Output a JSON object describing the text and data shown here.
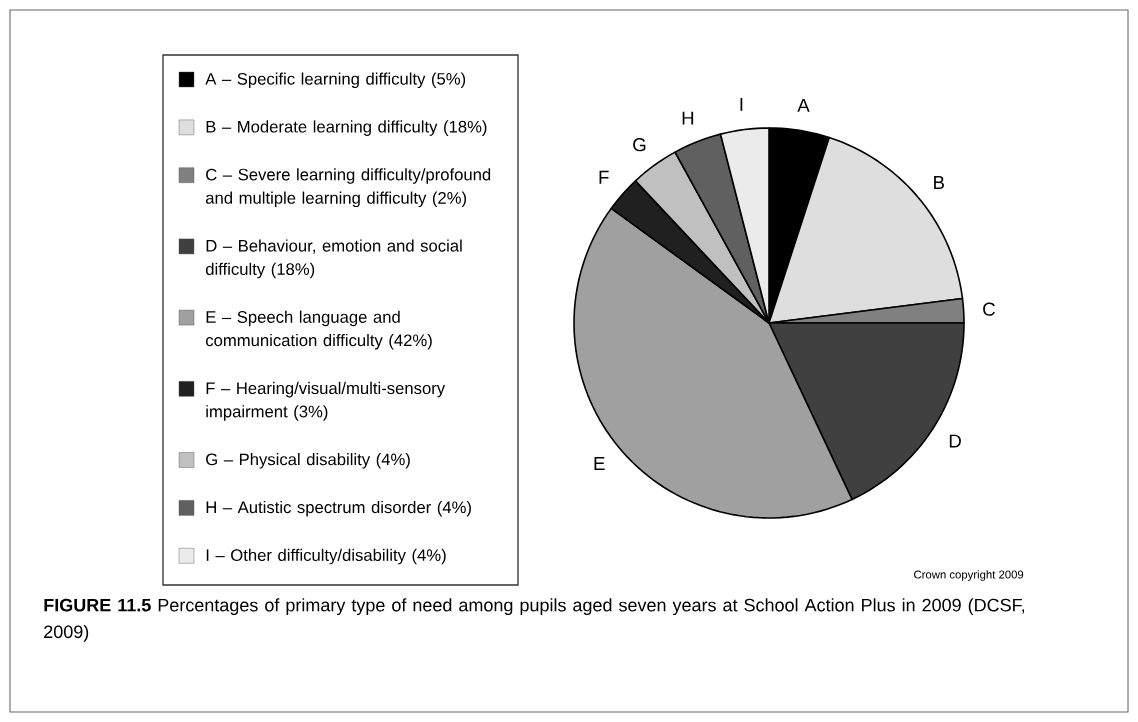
{
  "chart_data": {
    "type": "pie",
    "title": "**FIGURE 11.5** Percentages of primary type of need among pupils aged seven years at School Action Plus in 2009 (DCSF, 2009)",
    "categories": [
      "A – Specific learning difficulty (5%)",
      "B – Moderate learning difficulty (18%)",
      "C – Severe learning difficulty/profound and multiple learning difficulty (2%)",
      "D – Behaviour, emotion and social difficulty (18%)",
      "E – Speech language and communication difficulty (42%)",
      "F – Hearing/visual/multi-sensory impairment (3%)",
      "G – Physical disability (4%)",
      "H – Autistic spectrum disorder (4%)",
      "I – Other difficulty/disability (4%)"
    ],
    "values": [
      5,
      18,
      2,
      18,
      42,
      3,
      4,
      4,
      4
    ],
    "colors": [
      "#000000",
      "#dedede",
      "#808080",
      "#404040",
      "#a0a0a0",
      "#202020",
      "#c0c0c0",
      "#606060",
      "#ebebeb"
    ],
    "legend": "left",
    "annotations": [
      "A",
      "B",
      "C",
      "D",
      "E",
      "F",
      "G",
      "H",
      "I",
      "Crown copyright 2009"
    ]
  }
}
